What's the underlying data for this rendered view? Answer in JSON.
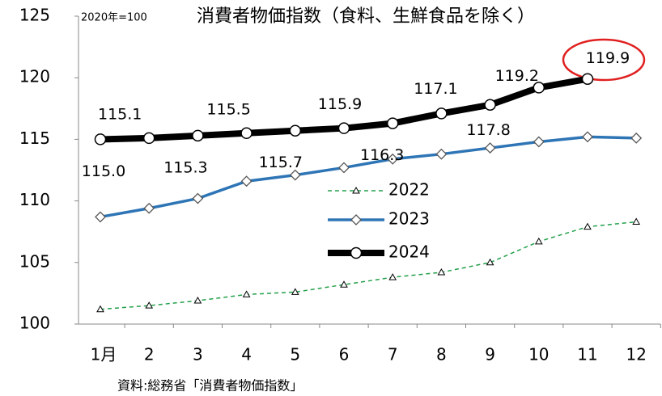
{
  "chart_data": {
    "type": "line",
    "title": "消費者物価指数（食料、生鮮食品を除く）",
    "unit_note": "2020年=100",
    "source": "資料:総務省「消費者物価指数」",
    "categories": [
      "1月",
      "2",
      "3",
      "4",
      "5",
      "6",
      "7",
      "8",
      "9",
      "10",
      "11",
      "12"
    ],
    "ylim": [
      100,
      125
    ],
    "yticks": [
      100,
      105,
      110,
      115,
      120,
      125
    ],
    "series": [
      {
        "name": "2022",
        "color": "#22a04a",
        "values": [
          101.2,
          101.5,
          101.9,
          102.4,
          102.6,
          103.2,
          103.8,
          104.2,
          105.0,
          106.7,
          107.9,
          108.3
        ]
      },
      {
        "name": "2023",
        "color": "#2e75b6",
        "values": [
          108.7,
          109.4,
          110.2,
          111.6,
          112.1,
          112.7,
          113.4,
          113.8,
          114.3,
          114.8,
          115.2,
          115.1
        ]
      },
      {
        "name": "2024",
        "color": "#000000",
        "values": [
          115.0,
          115.1,
          115.3,
          115.5,
          115.7,
          115.9,
          116.3,
          117.1,
          117.8,
          119.2,
          119.9,
          null
        ],
        "value_labels": [
          "115.0",
          "115.1",
          "115.3",
          "115.5",
          "115.7",
          "115.9",
          "116.3",
          "117.1",
          "117.8",
          "119.2",
          "119.9",
          null
        ]
      }
    ]
  }
}
